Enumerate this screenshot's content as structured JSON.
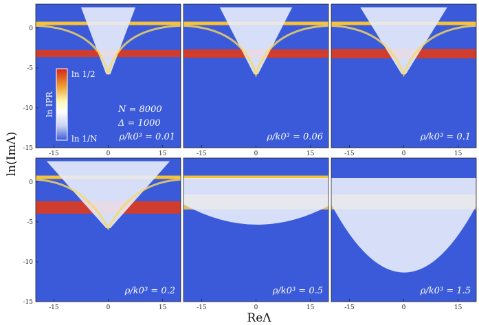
{
  "chart_data": {
    "type": "heatmap",
    "title": "",
    "xlabel": "ReΛ",
    "ylabel": "ln(ImΛ)",
    "xlim": [
      -20,
      20
    ],
    "ylim": [
      -15,
      3
    ],
    "x_ticks": [
      "-15",
      "0",
      "15"
    ],
    "y_ticks": [
      "0",
      "-5",
      "-10",
      "-15"
    ],
    "colorbar": {
      "label": "ln IPR",
      "top_label": "ln 1/2",
      "bottom_label": "ln 1/N",
      "colors": [
        "#d42418",
        "#f0a030",
        "#fff7b0",
        "#ffffff",
        "#c8d2f2",
        "#3a5ad9"
      ]
    },
    "background_color": "#3a5ad9",
    "annotations": {
      "N": "N = 8000",
      "Delta": "Δ = 1000"
    },
    "panels": [
      {
        "label": "ρ/k0³ = 0.01",
        "rho": 0.01
      },
      {
        "label": "ρ/k0³ = 0.06",
        "rho": 0.06
      },
      {
        "label": "ρ/k0³ = 0.1",
        "rho": 0.1
      },
      {
        "label": "ρ/k0³ = 0.2",
        "rho": 0.2
      },
      {
        "label": "ρ/k0³ = 0.5",
        "rho": 0.5
      },
      {
        "label": "ρ/k0³ = 1.5",
        "rho": 1.5
      }
    ]
  }
}
